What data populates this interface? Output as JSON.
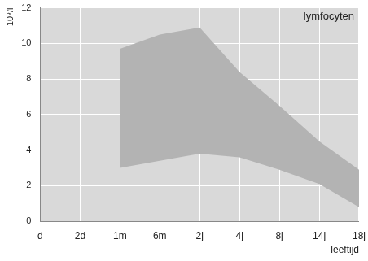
{
  "chart_data": {
    "type": "area_range",
    "title": "lymfocyten",
    "x_label": "leeftijd",
    "y_label": "10⁹/l",
    "categories": [
      "d",
      "2d",
      "1m",
      "6m",
      "2j",
      "4j",
      "8j",
      "14j",
      "18j"
    ],
    "upper": [
      null,
      null,
      9.7,
      10.5,
      10.9,
      8.4,
      6.5,
      4.5,
      2.9
    ],
    "lower": [
      null,
      null,
      3.0,
      3.4,
      3.8,
      3.6,
      2.9,
      2.1,
      0.8
    ],
    "color": "#b3b3b3",
    "ylim": [
      0,
      12
    ],
    "yticks": [
      0,
      2,
      4,
      6,
      8,
      10,
      12
    ],
    "grid": true
  }
}
